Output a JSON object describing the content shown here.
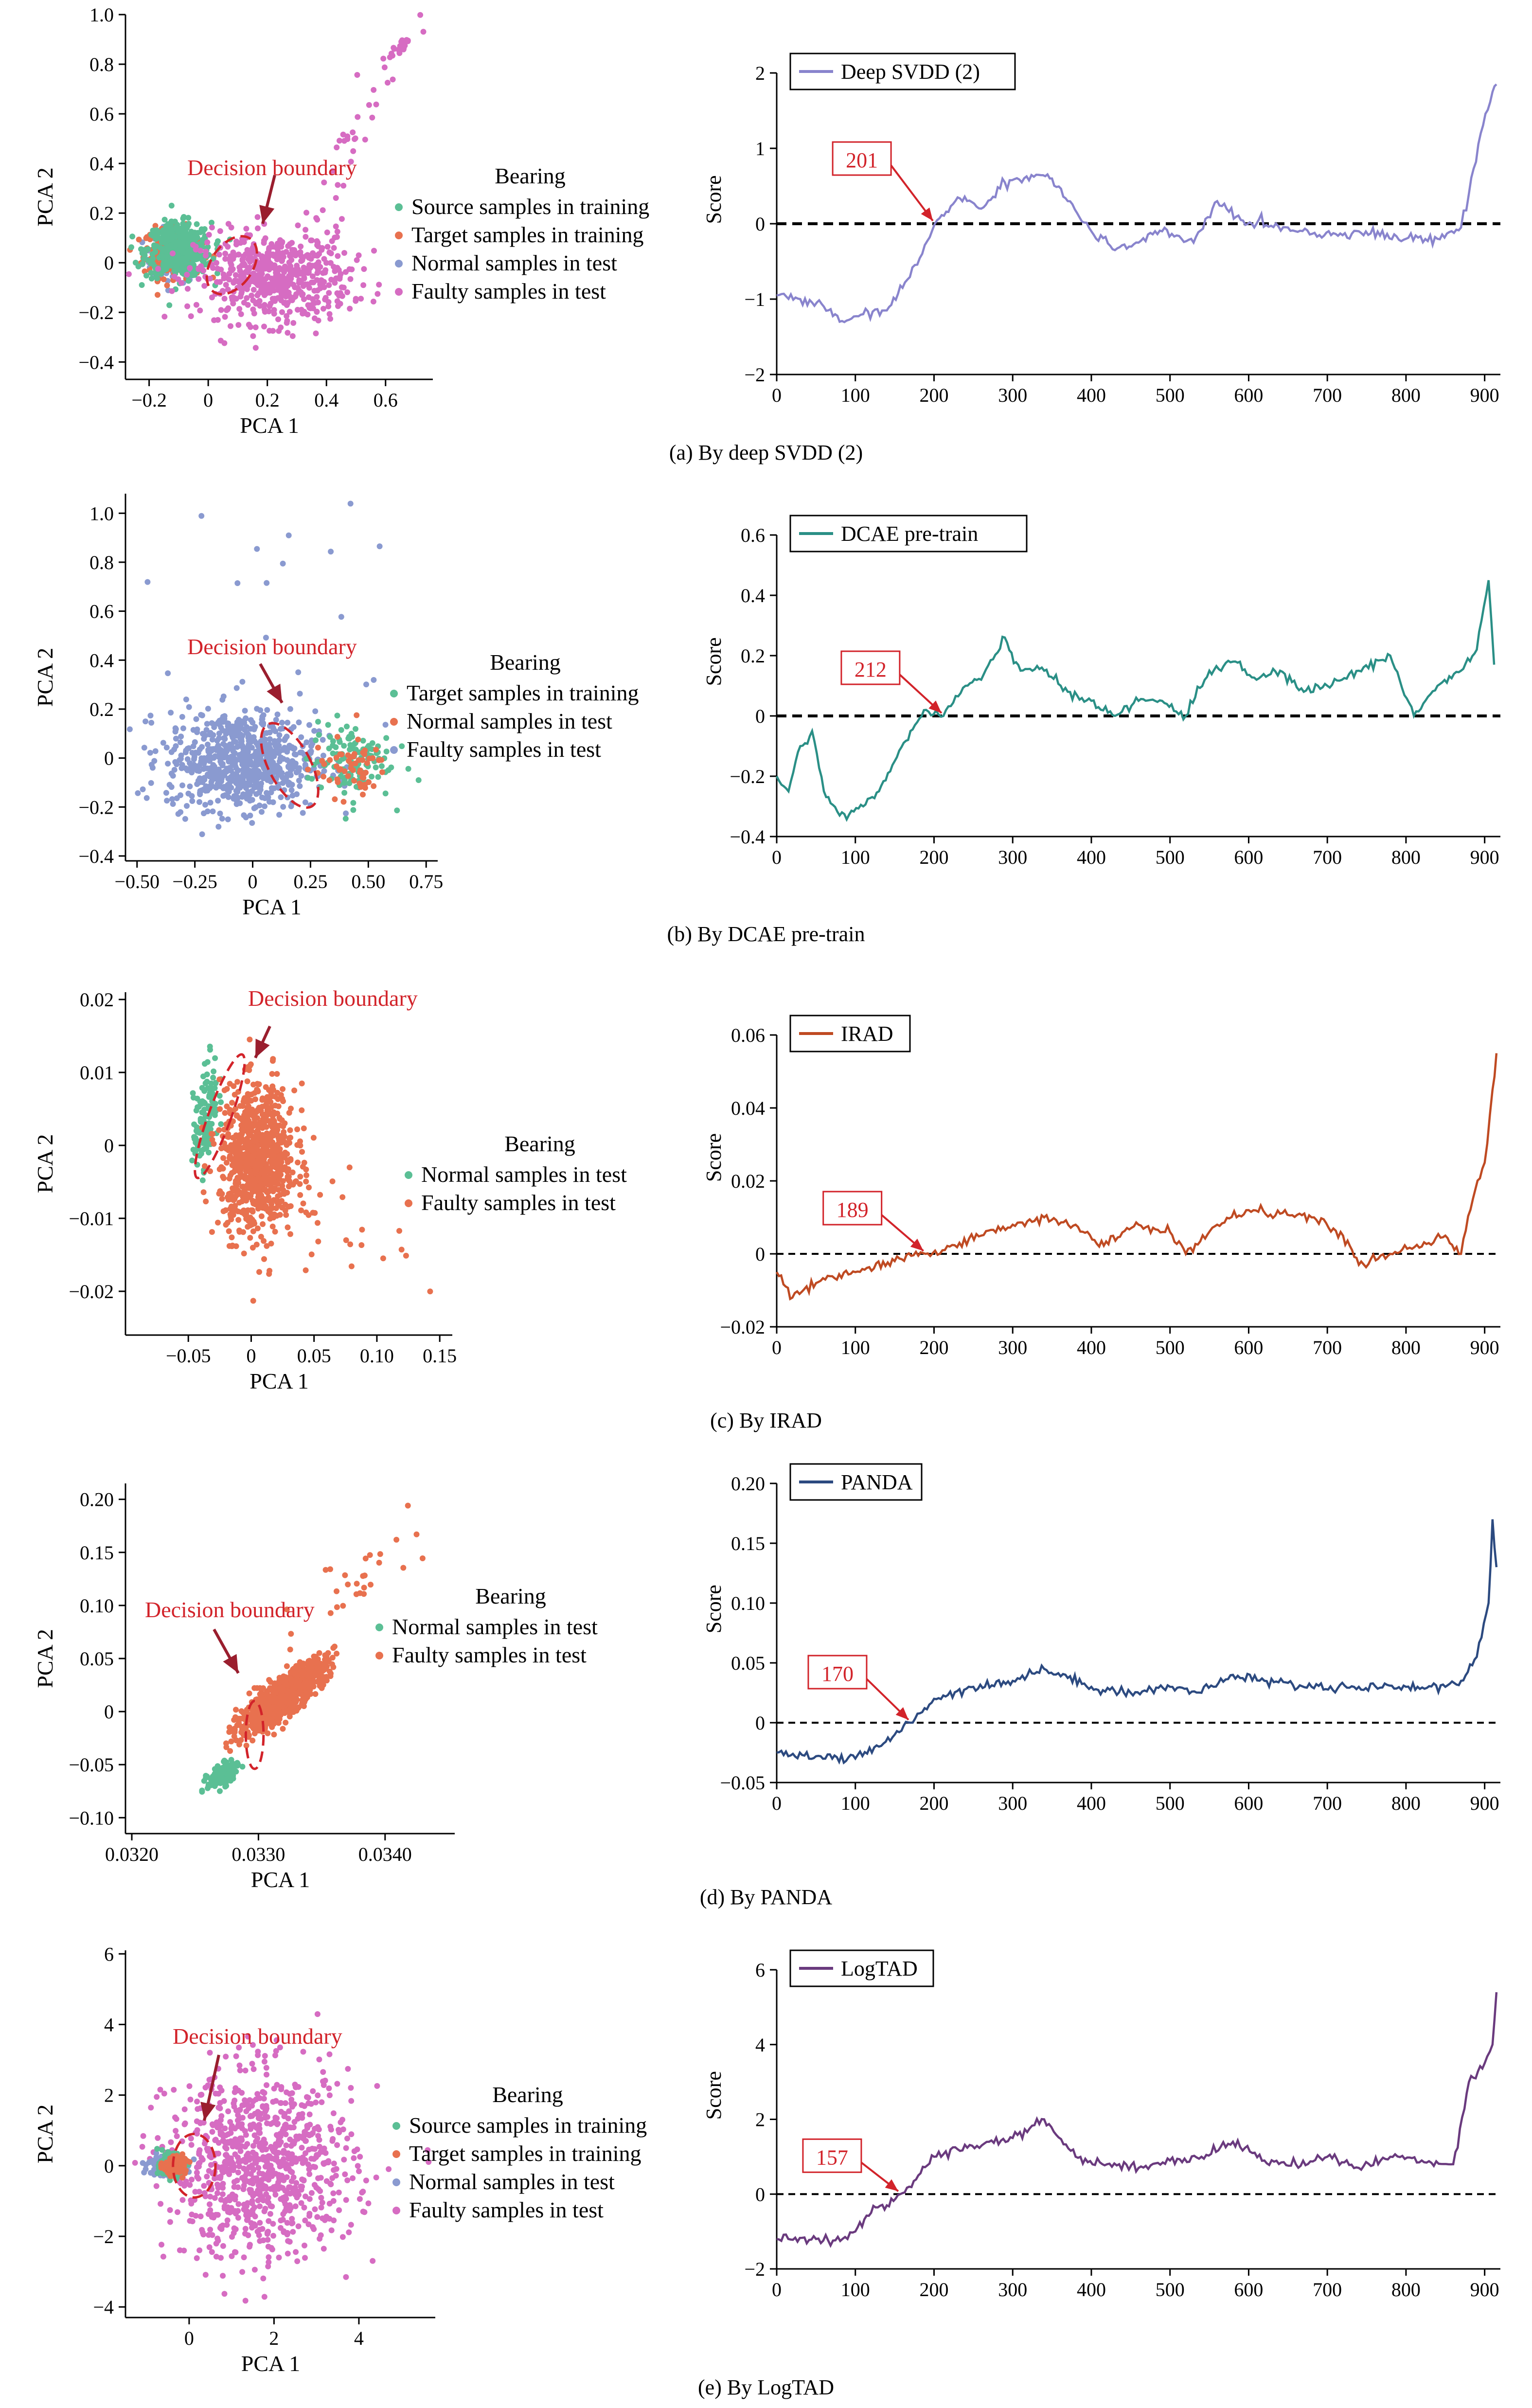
{
  "colors": {
    "source": "#5bbf95",
    "target": "#e8714f",
    "normal": "#8a9ad0",
    "faulty": "#d66cc2",
    "annot": "#d2232a",
    "arrow": "#9a1e2e"
  },
  "scatter_plots": [
    {
      "xlabel": "PCA 1",
      "ylabel": "PCA 2",
      "xlim": [
        -0.28,
        0.76
      ],
      "ylim": [
        -0.47,
        1.0
      ],
      "xticks": [
        -0.2,
        0,
        0.2,
        0.4,
        0.6
      ],
      "xtick_labels": [
        "−0.2",
        "0",
        "0.2",
        "0.4",
        "0.6"
      ],
      "yticks": [
        -0.4,
        -0.2,
        0,
        0.2,
        0.4,
        0.6,
        0.8,
        1.0
      ],
      "ytick_labels": [
        "−0.4",
        "−0.2",
        "0",
        "0.2",
        "0.4",
        "0.6",
        "0.8",
        "1.0"
      ],
      "annotation": "Decision boundary",
      "legend_title": "Bearing",
      "legend": [
        "Source samples in training",
        "Target samples in training",
        "Normal samples in test",
        "Faulty samples in test"
      ],
      "legend_colors": [
        "source",
        "target",
        "normal",
        "faulty"
      ],
      "ellipse": {
        "cx": 0.08,
        "cy": -0.01,
        "rx": 0.07,
        "ry": 0.13,
        "rot": 35
      },
      "clusters": [
        {
          "color": "normal",
          "n": 90,
          "mx": -0.12,
          "my": 0.02,
          "sx": 0.05,
          "sy": 0.05,
          "rho": 0
        },
        {
          "color": "target",
          "n": 200,
          "mx": -0.12,
          "my": 0.04,
          "sx": 0.05,
          "sy": 0.05,
          "rho": 0
        },
        {
          "color": "source",
          "n": 420,
          "mx": -0.1,
          "my": 0.05,
          "sx": 0.055,
          "sy": 0.055,
          "rho": 0
        },
        {
          "color": "faulty",
          "n": 600,
          "mx": 0.22,
          "my": -0.06,
          "sx": 0.13,
          "sy": 0.09,
          "rho": 0
        },
        {
          "color": "faulty",
          "n": 30,
          "mx": 0.48,
          "my": 0.45,
          "sx": 0.08,
          "sy": 0.22,
          "rho": 0.9
        },
        {
          "color": "faulty",
          "n": 22,
          "mx": 0.66,
          "my": 0.88,
          "sx": 0.03,
          "sy": 0.03,
          "rho": 0.8
        }
      ]
    },
    {
      "xlabel": "PCA 1",
      "ylabel": "PCA 2",
      "xlim": [
        -0.55,
        0.8
      ],
      "ylim": [
        -0.42,
        1.08
      ],
      "xticks": [
        -0.5,
        -0.25,
        0,
        0.25,
        0.5,
        0.75
      ],
      "xtick_labels": [
        "−0.50",
        "−0.25",
        "0",
        "0.25",
        "0.50",
        "0.75"
      ],
      "yticks": [
        -0.4,
        -0.2,
        0,
        0.2,
        0.4,
        0.6,
        0.8,
        1.0
      ],
      "ytick_labels": [
        "−0.4",
        "−0.2",
        "0",
        "0.2",
        "0.4",
        "0.6",
        "0.8",
        "1.0"
      ],
      "annotation": "Decision boundary",
      "legend_title": "Bearing",
      "legend": [
        "Target samples in training",
        "Normal samples in test",
        "Faulty samples in test"
      ],
      "legend_colors": [
        "source",
        "target",
        "normal"
      ],
      "ellipse": {
        "cx": 0.16,
        "cy": -0.03,
        "rx": 0.09,
        "ry": 0.19,
        "rot": -28
      },
      "clusters": [
        {
          "color": "normal",
          "n": 750,
          "mx": -0.05,
          "my": -0.01,
          "sx": 0.16,
          "sy": 0.1,
          "rho": 0
        },
        {
          "color": "source",
          "n": 120,
          "mx": 0.42,
          "my": -0.01,
          "sx": 0.09,
          "sy": 0.08,
          "rho": 0
        },
        {
          "color": "target",
          "n": 60,
          "mx": 0.42,
          "my": -0.04,
          "sx": 0.08,
          "sy": 0.06,
          "rho": 0
        },
        {
          "color": "normal",
          "n": 18,
          "mx": 0.1,
          "my": 0.55,
          "sx": 0.3,
          "sy": 0.25,
          "rho": 0
        }
      ]
    },
    {
      "xlabel": "PCA 1",
      "ylabel": "PCA 2",
      "xlim": [
        -0.1,
        0.16
      ],
      "ylim": [
        -0.026,
        0.021
      ],
      "xticks": [
        -0.05,
        0,
        0.05,
        0.1,
        0.15
      ],
      "xtick_labels": [
        "−0.05",
        "0",
        "0.05",
        "0.10",
        "0.15"
      ],
      "yticks": [
        -0.02,
        -0.01,
        0,
        0.01,
        0.02
      ],
      "ytick_labels": [
        "−0.02",
        "−0.01",
        "0",
        "0.01",
        "0.02"
      ],
      "annotation": "Decision boundary",
      "legend_title": "Bearing",
      "legend": [
        "Normal samples in test",
        "Faulty samples in test"
      ],
      "legend_colors": [
        "source",
        "target"
      ],
      "ellipse": {
        "cx": -0.025,
        "cy": 0.004,
        "rx": 0.009,
        "ry": 0.009,
        "rot": 20
      },
      "clusters": [
        {
          "color": "source",
          "n": 130,
          "mx": -0.036,
          "my": 0.004,
          "sx": 0.005,
          "sy": 0.004,
          "rho": 0.5
        },
        {
          "color": "target",
          "n": 850,
          "mx": 0.005,
          "my": -0.002,
          "sx": 0.015,
          "sy": 0.005,
          "rho": 0
        },
        {
          "color": "target",
          "n": 25,
          "mx": 0.08,
          "my": -0.01,
          "sx": 0.035,
          "sy": 0.006,
          "rho": -0.3
        }
      ]
    },
    {
      "xlabel": "PCA 1",
      "ylabel": "PCA 2",
      "xlim": [
        0.03195,
        0.03455
      ],
      "ylim": [
        -0.115,
        0.215
      ],
      "xticks": [
        0.032,
        0.033,
        0.034
      ],
      "xtick_labels": [
        "0.0320",
        "0.0330",
        "0.0340"
      ],
      "yticks": [
        -0.1,
        -0.05,
        0,
        0.05,
        0.1,
        0.15,
        0.2
      ],
      "ytick_labels": [
        "−0.10",
        "−0.05",
        "0",
        "0.05",
        "0.10",
        "0.15",
        "0.20"
      ],
      "annotation": "Decision boundary",
      "legend_title": "Bearing",
      "legend": [
        "Normal samples in test",
        "Faulty samples in test"
      ],
      "legend_colors": [
        "source",
        "target"
      ],
      "ellipse": {
        "cx": 0.03297,
        "cy": -0.022,
        "rx": 7e-05,
        "ry": 0.032,
        "rot": 0
      },
      "clusters": [
        {
          "color": "source",
          "n": 160,
          "mx": 0.03272,
          "my": -0.06,
          "sx": 6e-05,
          "sy": 0.006,
          "rho": 0.6
        },
        {
          "color": "target",
          "n": 950,
          "mx": 0.03318,
          "my": 0.013,
          "sx": 0.00017,
          "sy": 0.017,
          "rho": 0.85
        },
        {
          "color": "target",
          "n": 30,
          "mx": 0.03375,
          "my": 0.12,
          "sx": 0.00032,
          "sy": 0.035,
          "rho": 0.8
        }
      ]
    },
    {
      "xlabel": "PCA 1",
      "ylabel": "PCA 2",
      "xlim": [
        -1.5,
        5.8
      ],
      "ylim": [
        -4.3,
        6.1
      ],
      "xticks": [
        0,
        2,
        4
      ],
      "xtick_labels": [
        "0",
        "2",
        "4"
      ],
      "yticks": [
        -4,
        -2,
        0,
        2,
        4,
        6
      ],
      "ytick_labels": [
        "−4",
        "−2",
        "0",
        "2",
        "4",
        "6"
      ],
      "annotation": "Decision boundary",
      "legend_title": "Bearing",
      "legend": [
        "Source samples in training",
        "Target samples in training",
        "Normal samples in test",
        "Faulty samples in test"
      ],
      "legend_colors": [
        "source",
        "target",
        "normal",
        "faulty"
      ],
      "ellipse": {
        "cx": 0.12,
        "cy": 0.0,
        "rx": 0.5,
        "ry": 0.9,
        "rot": 0
      },
      "clusters": [
        {
          "color": "faulty",
          "n": 900,
          "mx": 1.7,
          "my": 0.0,
          "sx": 1.1,
          "sy": 1.3,
          "rho": 0
        },
        {
          "color": "normal",
          "n": 180,
          "mx": -0.55,
          "my": 0.0,
          "sx": 0.2,
          "sy": 0.15,
          "rho": 0
        },
        {
          "color": "source",
          "n": 150,
          "mx": -0.4,
          "my": 0.0,
          "sx": 0.15,
          "sy": 0.15,
          "rho": 0
        },
        {
          "color": "target",
          "n": 130,
          "mx": -0.35,
          "my": 0.0,
          "sx": 0.13,
          "sy": 0.12,
          "rho": 0
        }
      ]
    }
  ],
  "chart_data": [
    {
      "type": "line",
      "caption": "(a) By deep SVDD (2)",
      "legend": "Deep SVDD (2)",
      "color": "#8984cd",
      "ylabel": "Score",
      "xlim": [
        0,
        920
      ],
      "ylim": [
        -2,
        2
      ],
      "xticks": [
        0,
        100,
        200,
        300,
        400,
        500,
        600,
        700,
        800,
        900
      ],
      "yticks": [
        -2,
        -1,
        0,
        1,
        2
      ],
      "ytick_labels": [
        "−2",
        "−1",
        "0",
        "1",
        "2"
      ],
      "threshold": 0,
      "crossing_label": "201",
      "crossing_x": 201,
      "x": [
        0,
        30,
        60,
        80,
        110,
        140,
        160,
        185,
        201,
        230,
        260,
        290,
        330,
        350,
        370,
        400,
        430,
        460,
        490,
        530,
        560,
        590,
        610,
        650,
        690,
        740,
        800,
        840,
        870,
        880,
        895,
        910,
        915
      ],
      "y": [
        -0.95,
        -1.0,
        -1.1,
        -1.3,
        -1.2,
        -1.15,
        -0.85,
        -0.4,
        0.0,
        0.35,
        0.2,
        0.55,
        0.65,
        0.6,
        0.3,
        -0.1,
        -0.35,
        -0.25,
        -0.1,
        -0.25,
        0.3,
        0.05,
        0.0,
        -0.05,
        -0.15,
        -0.1,
        -0.2,
        -0.2,
        -0.05,
        0.4,
        1.2,
        1.75,
        1.85
      ]
    },
    {
      "type": "line",
      "caption": "(b) By DCAE pre-train",
      "legend": "DCAE pre-train",
      "color": "#2a8f86",
      "ylabel": "Score",
      "xlim": [
        0,
        920
      ],
      "ylim": [
        -0.4,
        0.6
      ],
      "xticks": [
        0,
        100,
        200,
        300,
        400,
        500,
        600,
        700,
        800,
        900
      ],
      "yticks": [
        -0.4,
        -0.2,
        0,
        0.2,
        0.4,
        0.6
      ],
      "ytick_labels": [
        "−0.4",
        "−0.2",
        "0",
        "0.2",
        "0.4",
        "0.6"
      ],
      "threshold": 0,
      "crossing_label": "212",
      "crossing_x": 212,
      "x": [
        0,
        15,
        30,
        45,
        60,
        80,
        110,
        130,
        150,
        170,
        190,
        212,
        240,
        260,
        290,
        310,
        340,
        370,
        400,
        430,
        460,
        490,
        520,
        550,
        580,
        610,
        640,
        670,
        700,
        740,
        780,
        810,
        840,
        870,
        890,
        905,
        912
      ],
      "y": [
        -0.2,
        -0.25,
        -0.1,
        -0.05,
        -0.25,
        -0.33,
        -0.3,
        -0.25,
        -0.15,
        -0.05,
        0.02,
        0.0,
        0.1,
        0.12,
        0.26,
        0.15,
        0.15,
        0.08,
        0.05,
        0.0,
        0.05,
        0.05,
        0.0,
        0.15,
        0.18,
        0.12,
        0.15,
        0.08,
        0.1,
        0.15,
        0.2,
        0.0,
        0.1,
        0.15,
        0.22,
        0.45,
        0.17
      ]
    },
    {
      "type": "line",
      "caption": "(c) By IRAD",
      "legend": "IRAD",
      "color": "#bf4a22",
      "ylabel": "Score",
      "xlim": [
        0,
        920
      ],
      "ylim": [
        -0.02,
        0.06
      ],
      "xticks": [
        0,
        100,
        200,
        300,
        400,
        500,
        600,
        700,
        800,
        900
      ],
      "yticks": [
        -0.02,
        0,
        0.02,
        0.04,
        0.06
      ],
      "ytick_labels": [
        "−0.02",
        "0",
        "0.02",
        "0.04",
        "0.06"
      ],
      "threshold": 0,
      "crossing_label": "189",
      "crossing_x": 189,
      "x": [
        0,
        20,
        50,
        100,
        150,
        189,
        220,
        260,
        300,
        340,
        380,
        410,
        460,
        500,
        520,
        560,
        600,
        640,
        680,
        720,
        740,
        780,
        820,
        850,
        870,
        885,
        900,
        910,
        915
      ],
      "y": [
        -0.005,
        -0.012,
        -0.008,
        -0.005,
        -0.002,
        0.0,
        0.002,
        0.005,
        0.008,
        0.01,
        0.008,
        0.002,
        0.008,
        0.006,
        0.0,
        0.008,
        0.012,
        0.011,
        0.01,
        0.005,
        -0.003,
        0.0,
        0.002,
        0.005,
        0.0,
        0.015,
        0.025,
        0.045,
        0.055
      ]
    },
    {
      "type": "line",
      "caption": "(d) By PANDA",
      "legend": "PANDA",
      "color": "#2c4a80",
      "ylabel": "Score",
      "xlim": [
        0,
        920
      ],
      "ylim": [
        -0.05,
        0.2
      ],
      "xticks": [
        0,
        100,
        200,
        300,
        400,
        500,
        600,
        700,
        800,
        900
      ],
      "yticks": [
        -0.05,
        0,
        0.05,
        0.1,
        0.15,
        0.2
      ],
      "ytick_labels": [
        "−0.05",
        "0",
        "0.05",
        "0.10",
        "0.15",
        "0.20"
      ],
      "threshold": 0,
      "crossing_label": "170",
      "crossing_x": 170,
      "x": [
        0,
        50,
        100,
        130,
        150,
        170,
        200,
        250,
        300,
        340,
        400,
        450,
        500,
        540,
        580,
        620,
        680,
        740,
        800,
        850,
        870,
        890,
        905,
        910,
        915
      ],
      "y": [
        -0.025,
        -0.028,
        -0.03,
        -0.02,
        -0.01,
        0.0,
        0.02,
        0.03,
        0.035,
        0.045,
        0.03,
        0.025,
        0.03,
        0.025,
        0.04,
        0.035,
        0.03,
        0.03,
        0.03,
        0.03,
        0.035,
        0.055,
        0.1,
        0.17,
        0.13
      ]
    },
    {
      "type": "line",
      "caption": "(e) By LogTAD",
      "legend": "LogTAD",
      "color": "#6a3a7e",
      "ylabel": "Score",
      "xlim": [
        0,
        920
      ],
      "ylim": [
        -2,
        6
      ],
      "xticks": [
        0,
        100,
        200,
        300,
        400,
        500,
        600,
        700,
        800,
        900
      ],
      "yticks": [
        -2,
        0,
        2,
        4,
        6
      ],
      "ytick_labels": [
        "−2",
        "0",
        "2",
        "4",
        "6"
      ],
      "threshold": 0,
      "crossing_label": "157",
      "crossing_x": 157,
      "x": [
        0,
        50,
        90,
        100,
        120,
        140,
        157,
        180,
        200,
        230,
        270,
        300,
        340,
        380,
        420,
        460,
        500,
        540,
        580,
        620,
        660,
        700,
        740,
        780,
        820,
        860,
        880,
        900,
        910,
        915
      ],
      "y": [
        -1.2,
        -1.2,
        -1.2,
        -1.0,
        -0.5,
        -0.3,
        0.0,
        0.5,
        1.0,
        1.2,
        1.4,
        1.5,
        2.0,
        1.0,
        0.8,
        0.7,
        0.9,
        1.0,
        1.4,
        0.9,
        0.8,
        1.0,
        0.7,
        1.0,
        0.9,
        0.8,
        3.0,
        3.5,
        4.0,
        5.4
      ]
    }
  ]
}
